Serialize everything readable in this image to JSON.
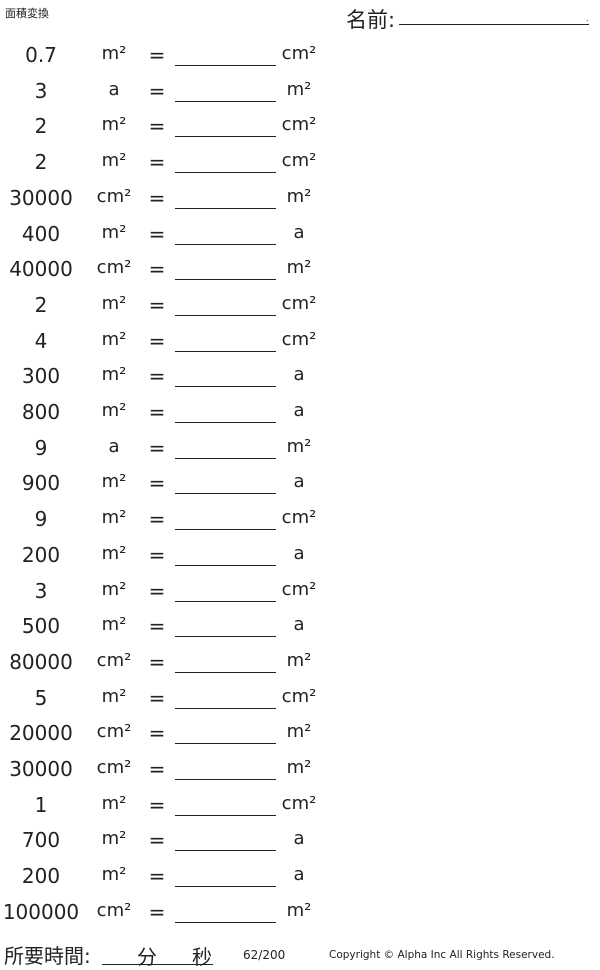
{
  "header": {
    "title": "面積変換",
    "name_label": "名前:",
    "name_end": "."
  },
  "problems": [
    {
      "value": "0.7",
      "from": "m²",
      "to": "cm²"
    },
    {
      "value": "3",
      "from": "a",
      "to": "m²"
    },
    {
      "value": "2",
      "from": "m²",
      "to": "cm²"
    },
    {
      "value": "2",
      "from": "m²",
      "to": "cm²"
    },
    {
      "value": "30000",
      "from": "cm²",
      "to": "m²"
    },
    {
      "value": "400",
      "from": "m²",
      "to": "a"
    },
    {
      "value": "40000",
      "from": "cm²",
      "to": "m²"
    },
    {
      "value": "2",
      "from": "m²",
      "to": "cm²"
    },
    {
      "value": "4",
      "from": "m²",
      "to": "cm²"
    },
    {
      "value": "300",
      "from": "m²",
      "to": "a"
    },
    {
      "value": "800",
      "from": "m²",
      "to": "a"
    },
    {
      "value": "9",
      "from": "a",
      "to": "m²"
    },
    {
      "value": "900",
      "from": "m²",
      "to": "a"
    },
    {
      "value": "9",
      "from": "m²",
      "to": "cm²"
    },
    {
      "value": "200",
      "from": "m²",
      "to": "a"
    },
    {
      "value": "3",
      "from": "m²",
      "to": "cm²"
    },
    {
      "value": "500",
      "from": "m²",
      "to": "a"
    },
    {
      "value": "80000",
      "from": "cm²",
      "to": "m²"
    },
    {
      "value": "5",
      "from": "m²",
      "to": "cm²"
    },
    {
      "value": "20000",
      "from": "cm²",
      "to": "m²"
    },
    {
      "value": "30000",
      "from": "cm²",
      "to": "m²"
    },
    {
      "value": "1",
      "from": "m²",
      "to": "cm²"
    },
    {
      "value": "700",
      "from": "m²",
      "to": "a"
    },
    {
      "value": "200",
      "from": "m²",
      "to": "a"
    },
    {
      "value": "100000",
      "from": "cm²",
      "to": "m²"
    }
  ],
  "equals": "=",
  "footer": {
    "time_label": "所要時間:",
    "minutes": "分",
    "seconds": "秒",
    "page": "62/200",
    "copyright": "Copyright © Alpha Inc All Rights Reserved."
  }
}
